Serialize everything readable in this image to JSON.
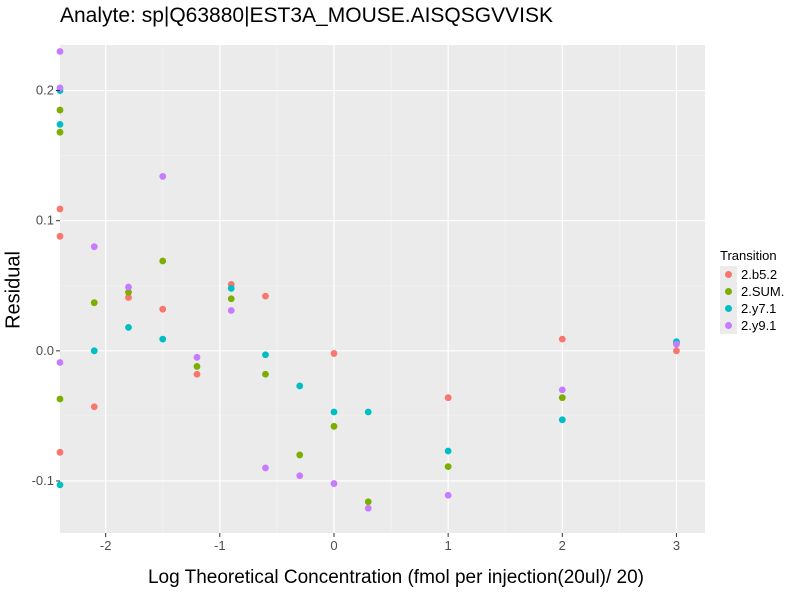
{
  "chart_data": {
    "type": "scatter",
    "title": "Analyte: sp|Q63880|EST3A_MOUSE.AISQSGVVISK",
    "xlabel": "Log Theoretical Concentration (fmol per injection(20ul)/ 20)",
    "ylabel": "Residual",
    "xlim": [
      -2.4,
      3.25
    ],
    "ylim": [
      -0.14,
      0.235
    ],
    "x_ticks": [
      -2,
      -1,
      0,
      1,
      2,
      3
    ],
    "x_tick_labels": [
      "-2",
      "-1",
      "0",
      "1",
      "2",
      "3"
    ],
    "y_ticks": [
      -0.1,
      0.0,
      0.1,
      0.2
    ],
    "y_tick_labels": [
      "-0.1",
      "0.0",
      "0.1",
      "0.2"
    ],
    "grid": true,
    "legend": {
      "title": "Transition",
      "position": "right"
    },
    "series": [
      {
        "name": "2.b5.2",
        "color": "#F8766D",
        "points": [
          [
            -2.4,
            0.109
          ],
          [
            -2.4,
            0.088
          ],
          [
            -2.4,
            -0.078
          ],
          [
            -2.1,
            -0.043
          ],
          [
            -1.8,
            0.041
          ],
          [
            -1.5,
            0.032
          ],
          [
            -1.2,
            -0.018
          ],
          [
            -0.9,
            0.051
          ],
          [
            -0.6,
            0.042
          ],
          [
            0.0,
            -0.002
          ],
          [
            1.0,
            -0.036
          ],
          [
            2.0,
            0.009
          ],
          [
            3.0,
            0.0
          ]
        ]
      },
      {
        "name": "2.SUM.",
        "color": "#7CAE00",
        "points": [
          [
            -2.4,
            0.185
          ],
          [
            -2.4,
            0.168
          ],
          [
            -2.4,
            -0.037
          ],
          [
            -2.1,
            0.037
          ],
          [
            -1.8,
            0.045
          ],
          [
            -1.5,
            0.069
          ],
          [
            -1.2,
            -0.012
          ],
          [
            -0.9,
            0.04
          ],
          [
            -0.6,
            -0.018
          ],
          [
            -0.3,
            -0.08
          ],
          [
            0.0,
            -0.058
          ],
          [
            0.3,
            -0.116
          ],
          [
            1.0,
            -0.089
          ],
          [
            2.0,
            -0.036
          ],
          [
            3.0,
            0.006
          ]
        ]
      },
      {
        "name": "2.y7.1",
        "color": "#00BFC4",
        "points": [
          [
            -2.4,
            0.2
          ],
          [
            -2.4,
            0.174
          ],
          [
            -2.4,
            -0.103
          ],
          [
            -2.1,
            0.0
          ],
          [
            -1.8,
            0.018
          ],
          [
            -1.5,
            0.009
          ],
          [
            -0.9,
            0.048
          ],
          [
            -0.6,
            -0.003
          ],
          [
            -0.3,
            -0.027
          ],
          [
            0.0,
            -0.047
          ],
          [
            0.3,
            -0.047
          ],
          [
            1.0,
            -0.077
          ],
          [
            2.0,
            -0.053
          ],
          [
            3.0,
            0.007
          ]
        ]
      },
      {
        "name": "2.y9.1",
        "color": "#C77CFF",
        "points": [
          [
            -2.4,
            0.23
          ],
          [
            -2.4,
            0.202
          ],
          [
            -2.4,
            -0.009
          ],
          [
            -2.1,
            0.08
          ],
          [
            -1.8,
            0.049
          ],
          [
            -1.5,
            0.134
          ],
          [
            -1.2,
            -0.005
          ],
          [
            -0.9,
            0.031
          ],
          [
            -0.6,
            -0.09
          ],
          [
            -0.3,
            -0.096
          ],
          [
            0.0,
            -0.102
          ],
          [
            0.3,
            -0.121
          ],
          [
            1.0,
            -0.111
          ],
          [
            2.0,
            -0.03
          ],
          [
            3.0,
            0.005
          ]
        ]
      }
    ]
  }
}
